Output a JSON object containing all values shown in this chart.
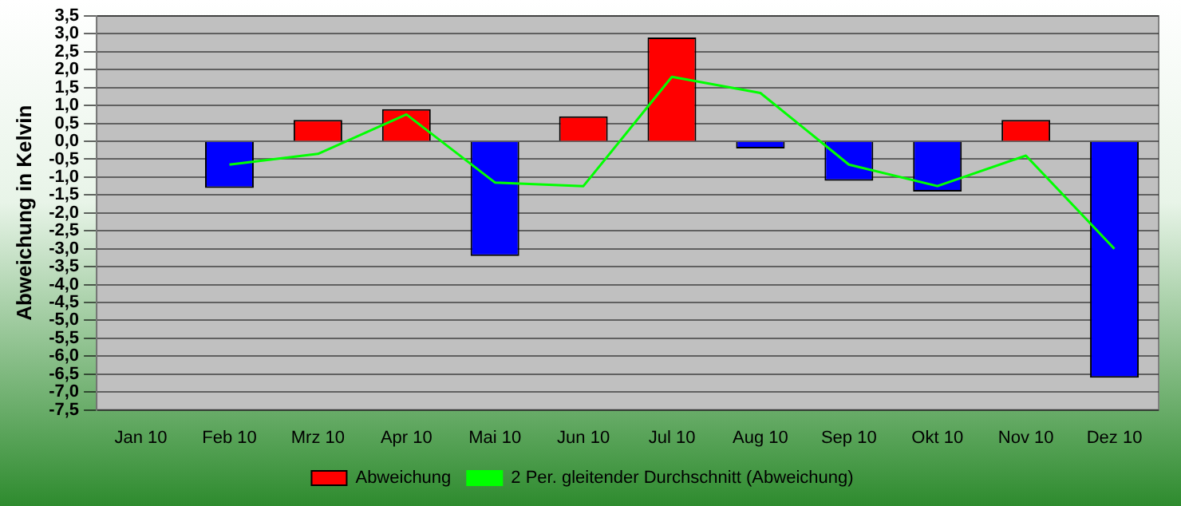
{
  "chart_data": {
    "type": "bar",
    "ylabel": "Abweichung in Kelvin",
    "categories": [
      "Jan 10",
      "Feb 10",
      "Mrz 10",
      "Apr 10",
      "Mai 10",
      "Jun 10",
      "Jul 10",
      "Aug 10",
      "Sep 10",
      "Okt 10",
      "Nov 10",
      "Dez 10"
    ],
    "series": [
      {
        "name": "Abweichung",
        "color": "#ff0000",
        "colors": [
          "#ff0000",
          "#0000ff",
          "#ff0000",
          "#ff0000",
          "#0000ff",
          "#ff0000",
          "#ff0000",
          "#0000ff",
          "#0000ff",
          "#0000ff",
          "#ff0000",
          "#0000ff"
        ],
        "values": [
          0,
          -1.3,
          0.6,
          0.9,
          -3.2,
          0.7,
          2.9,
          -0.2,
          -1.1,
          -1.4,
          0.6,
          -6.6
        ]
      },
      {
        "name": "2 Per. gleitender Durchschnitt (Abweichung)",
        "type": "line",
        "color": "#00ff00",
        "values": [
          null,
          -0.65,
          -0.35,
          0.75,
          -1.15,
          -1.25,
          1.8,
          1.35,
          -0.65,
          -1.25,
          -0.4,
          -3.0
        ]
      }
    ],
    "ylim": [
      -7.5,
      3.5
    ],
    "yticks": [
      {
        "value": 3.5,
        "label": "3,5"
      },
      {
        "value": 3,
        "label": "3,0"
      },
      {
        "value": 2.5,
        "label": "2,5"
      },
      {
        "value": 2,
        "label": "2,0"
      },
      {
        "value": 1.5,
        "label": "1,5"
      },
      {
        "value": 1,
        "label": "1,0"
      },
      {
        "value": 0.5,
        "label": "0,5"
      },
      {
        "value": 0,
        "label": "0,0"
      },
      {
        "value": -0.5,
        "label": "-0,5"
      },
      {
        "value": -1,
        "label": "-1,0"
      },
      {
        "value": -1.5,
        "label": "-1,5"
      },
      {
        "value": -2,
        "label": "-2,0"
      },
      {
        "value": -2.5,
        "label": "-2,5"
      },
      {
        "value": -3,
        "label": "-3,0"
      },
      {
        "value": -3.5,
        "label": "-3,5"
      },
      {
        "value": -4,
        "label": "-4,0"
      },
      {
        "value": -4.5,
        "label": "-4,5"
      },
      {
        "value": -5,
        "label": "-5,0"
      },
      {
        "value": -5.5,
        "label": "-5,5"
      },
      {
        "value": -6,
        "label": "-6,0"
      },
      {
        "value": -6.5,
        "label": "-6,5"
      },
      {
        "value": -7,
        "label": "-7,0"
      },
      {
        "value": -7.5,
        "label": "-7,5"
      }
    ],
    "grid": "y",
    "legend": "bottom",
    "marker": "none",
    "line_style": "solid"
  }
}
